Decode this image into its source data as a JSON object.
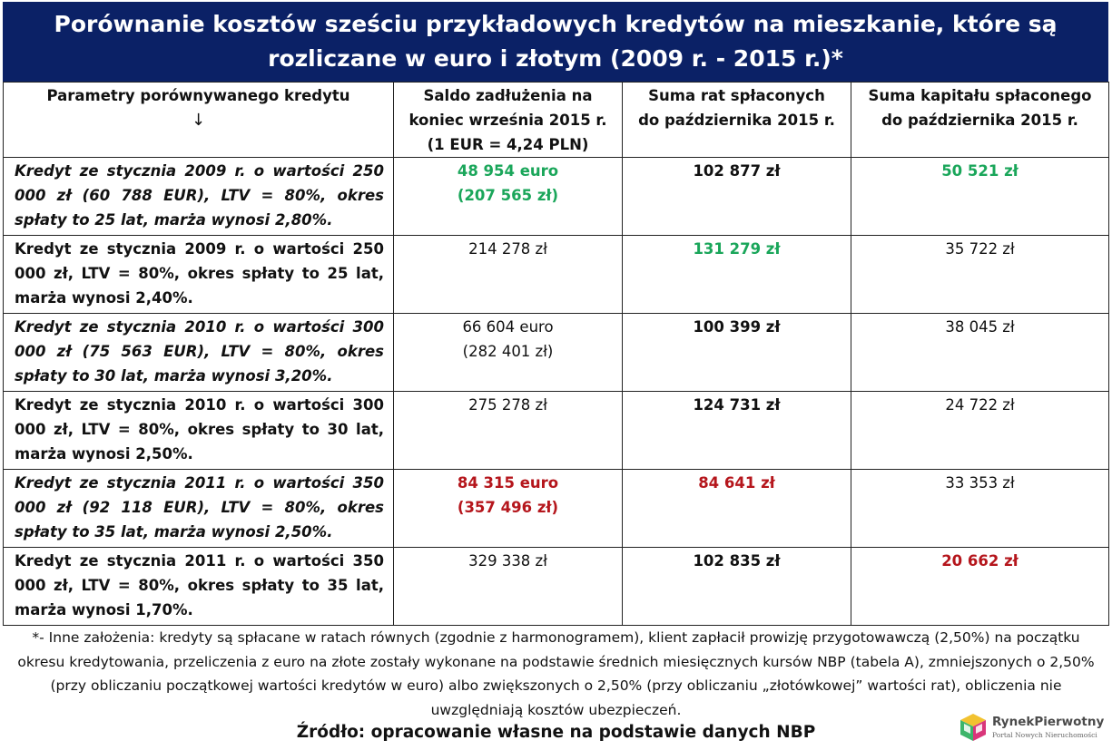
{
  "title": {
    "line1": "Porównanie kosztów sześciu przykładowych kredytów na mieszkanie, które są",
    "line2": "rozliczane w euro i złotym (2009 r. - 2015 r.)*"
  },
  "table": {
    "headers": {
      "col1": "Parametry porównywanego kredytu",
      "col1_arrow": "↓",
      "col2_l1": "Saldo zadłużenia na",
      "col2_l2": "koniec września 2015 r.",
      "col2_l3": "(1 EUR = 4,24 PLN)",
      "col3_l1": "Suma rat spłaconych",
      "col3_l2": "do października 2015 r.",
      "col4_l1": "Suma kapitału spłaconego",
      "col4_l2": "do października 2015 r."
    },
    "rows": [
      {
        "param": "Kredyt ze stycznia 2009 r. o wartości 250 000 zł (60 788 EUR), LTV = 80%, okres spłaty to 25 lat, marża wynosi 2,80%.",
        "saldo_l1": "48 954 euro",
        "saldo_l2": "(207 565 zł)",
        "raty": "102 877 zł",
        "kapital": "50 521 zł"
      },
      {
        "param": "Kredyt ze stycznia 2009 r. o wartości 250 000 zł, LTV = 80%, okres spłaty to 25 lat, marża wynosi 2,40%.",
        "saldo_l1": "214 278 zł",
        "raty": "131 279 zł",
        "kapital": "35 722 zł"
      },
      {
        "param": "Kredyt ze stycznia 2010 r. o wartości 300 000 zł (75 563 EUR), LTV = 80%, okres spłaty to 30 lat, marża wynosi 3,20%.",
        "saldo_l1": "66 604 euro",
        "saldo_l2": "(282 401 zł)",
        "raty": "100 399 zł",
        "kapital": "38 045 zł"
      },
      {
        "param": "Kredyt ze stycznia 2010 r. o wartości 300 000 zł, LTV = 80%, okres spłaty to 30 lat, marża wynosi 2,50%.",
        "saldo_l1": "275 278 zł",
        "raty": "124 731 zł",
        "kapital": "24 722 zł"
      },
      {
        "param": "Kredyt ze stycznia 2011 r. o wartości 350 000 zł (92 118 EUR), LTV = 80%, okres spłaty to 35 lat, marża wynosi 2,50%.",
        "saldo_l1": "84 315 euro",
        "saldo_l2": "(357 496 zł)",
        "raty": "84 641 zł",
        "kapital": "33 353 zł"
      },
      {
        "param": "Kredyt ze stycznia 2011 r. o wartości 350 000 zł, LTV = 80%, okres spłaty to 35 lat, marża wynosi 1,70%.",
        "saldo_l1": "329 338 zł",
        "raty": "102 835 zł",
        "kapital": "20 662 zł"
      }
    ]
  },
  "footnote": "*- Inne założenia: kredyty są spłacane w ratach równych (zgodnie z harmonogramem), klient zapłacił prowizję przygotowawczą (2,50%) na początku okresu kredytowania, przeliczenia z euro na złote zostały wykonane na podstawie średnich miesięcznych kursów NBP (tabela A), zmniejszonych o 2,50% (przy obliczaniu początkowej wartości kredytów w euro) albo zwiększonych o 2,50% (przy obliczaniu „złotówkowej” wartości rat), obliczenia nie uwzględniają kosztów ubezpieczeń.",
  "source": "Źródło: opracowanie własne na podstawie danych NBP",
  "logo": {
    "name": "RynekPierwotny",
    "subtitle": "Portal Nowych Nieruchomości",
    "icon": "cube-logo-icon"
  },
  "colors": {
    "title_bg": "#0b2166",
    "best": "#1aa65a",
    "worst": "#b5161c"
  }
}
